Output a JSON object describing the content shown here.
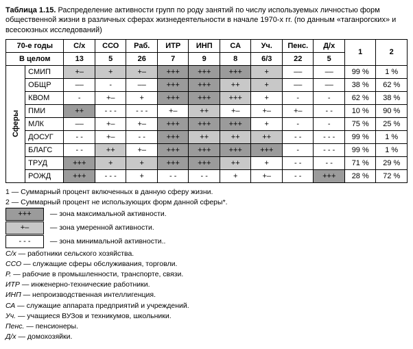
{
  "colors": {
    "bg": "#ffffff",
    "text": "#000000",
    "max": "#9b9b9b",
    "mid": "#c8c8c8",
    "min": "#ffffff"
  },
  "title_prefix": "Таблица 1.15.",
  "title": "Распределение активности групп по роду занятий по числу используемых личностью форм общественной жизни в различных сферах жизнедеятельности в начале 1970-х гг. (по данным «таганрогских» и всесоюзных исследований)",
  "header1": [
    "70-е годы",
    "С/х",
    "ССО",
    "Раб.",
    "ИТР",
    "ИНП",
    "СА",
    "Уч.",
    "Пенс.",
    "Д/х",
    "1",
    "2"
  ],
  "header2": [
    "В целом",
    "13",
    "5",
    "26",
    "7",
    "9",
    "8",
    "6/3",
    "22",
    "5"
  ],
  "vert_label": "Сферы",
  "rows": [
    {
      "name": "СМИП",
      "col1": "99 %",
      "col2": "1 %",
      "cells": [
        {
          "v": "+–",
          "s": "mid"
        },
        {
          "v": "+",
          "s": "mid"
        },
        {
          "v": "+–",
          "s": "mid"
        },
        {
          "v": "+++",
          "s": "max"
        },
        {
          "v": "+++",
          "s": "max"
        },
        {
          "v": "+++",
          "s": "max"
        },
        {
          "v": "+",
          "s": "mid"
        },
        {
          "v": "––",
          "s": "min"
        },
        {
          "v": "––",
          "s": "min"
        }
      ]
    },
    {
      "name": "ОБЩР",
      "col1": "38 %",
      "col2": "62 %",
      "cells": [
        {
          "v": "––",
          "s": "min"
        },
        {
          "v": "-",
          "s": "min"
        },
        {
          "v": "––",
          "s": "min"
        },
        {
          "v": "+++",
          "s": "max"
        },
        {
          "v": "+++",
          "s": "max"
        },
        {
          "v": "++",
          "s": "mid"
        },
        {
          "v": "+",
          "s": "mid"
        },
        {
          "v": "––",
          "s": "min"
        },
        {
          "v": "––",
          "s": "min"
        }
      ]
    },
    {
      "name": "КВОМ",
      "col1": "62 %",
      "col2": "38 %",
      "cells": [
        {
          "v": "-",
          "s": "min"
        },
        {
          "v": "+–",
          "s": "min"
        },
        {
          "v": "+",
          "s": "min"
        },
        {
          "v": "+++",
          "s": "max"
        },
        {
          "v": "+++",
          "s": "max"
        },
        {
          "v": "+++",
          "s": "mid"
        },
        {
          "v": "+",
          "s": "min"
        },
        {
          "v": "-",
          "s": "min"
        },
        {
          "v": "-",
          "s": "min"
        }
      ]
    },
    {
      "name": "ПМИ",
      "col1": "10 %",
      "col2": "90 %",
      "cells": [
        {
          "v": "++",
          "s": "max"
        },
        {
          "v": "- - -",
          "s": "min"
        },
        {
          "v": "- - -",
          "s": "min"
        },
        {
          "v": "+–",
          "s": "min"
        },
        {
          "v": "++",
          "s": "mid"
        },
        {
          "v": "+–",
          "s": "min"
        },
        {
          "v": "+–",
          "s": "min"
        },
        {
          "v": "+–",
          "s": "min"
        },
        {
          "v": "- -",
          "s": "min"
        }
      ]
    },
    {
      "name": "МЛК",
      "col1": "75 %",
      "col2": "25 %",
      "cells": [
        {
          "v": "––",
          "s": "min"
        },
        {
          "v": "+–",
          "s": "min"
        },
        {
          "v": "+–",
          "s": "min"
        },
        {
          "v": "+++",
          "s": "max"
        },
        {
          "v": "+++",
          "s": "max"
        },
        {
          "v": "+++",
          "s": "max"
        },
        {
          "v": "+",
          "s": "min"
        },
        {
          "v": "-",
          "s": "min"
        },
        {
          "v": "-",
          "s": "min"
        }
      ]
    },
    {
      "name": "ДОСУГ",
      "col1": "99 %",
      "col2": "1 %",
      "cells": [
        {
          "v": "- -",
          "s": "min"
        },
        {
          "v": "+–",
          "s": "min"
        },
        {
          "v": "- -",
          "s": "min"
        },
        {
          "v": "+++",
          "s": "max"
        },
        {
          "v": "++",
          "s": "mid"
        },
        {
          "v": "++",
          "s": "mid"
        },
        {
          "v": "++",
          "s": "mid"
        },
        {
          "v": "- -",
          "s": "min"
        },
        {
          "v": "- - -",
          "s": "min"
        }
      ]
    },
    {
      "name": "БЛАГС",
      "col1": "99 %",
      "col2": "1 %",
      "cells": [
        {
          "v": "- -",
          "s": "min"
        },
        {
          "v": "++",
          "s": "mid"
        },
        {
          "v": "+–",
          "s": "min"
        },
        {
          "v": "+++",
          "s": "max"
        },
        {
          "v": "+++",
          "s": "max"
        },
        {
          "v": "+++",
          "s": "max"
        },
        {
          "v": "+++",
          "s": "max"
        },
        {
          "v": "-",
          "s": "min"
        },
        {
          "v": "- - -",
          "s": "min"
        }
      ]
    },
    {
      "name": "ТРУД",
      "col1": "71 %",
      "col2": "29 %",
      "cells": [
        {
          "v": "+++",
          "s": "max"
        },
        {
          "v": "+",
          "s": "mid"
        },
        {
          "v": "+",
          "s": "mid"
        },
        {
          "v": "+++",
          "s": "max"
        },
        {
          "v": "+++",
          "s": "max"
        },
        {
          "v": "++",
          "s": "mid"
        },
        {
          "v": "+",
          "s": "min"
        },
        {
          "v": "- -",
          "s": "min"
        },
        {
          "v": "- -",
          "s": "min"
        }
      ]
    },
    {
      "name": "РОЖД",
      "col1": "28 %",
      "col2": "72 %",
      "cells": [
        {
          "v": "+++",
          "s": "max"
        },
        {
          "v": "- - -",
          "s": "min"
        },
        {
          "v": "+",
          "s": "min"
        },
        {
          "v": "- -",
          "s": "min"
        },
        {
          "v": "- -",
          "s": "min"
        },
        {
          "v": "+",
          "s": "min"
        },
        {
          "v": "+–",
          "s": "min"
        },
        {
          "v": "- -",
          "s": "min"
        },
        {
          "v": "+++",
          "s": "max"
        }
      ]
    }
  ],
  "foot1": "1 — Суммарный процент включенных в данную сферу жизни.",
  "foot2": "2 — Суммарный процент не использующих форм данной сферы*.",
  "legend": [
    {
      "v": "+++",
      "s": "max",
      "t": "— зона максимальной активности."
    },
    {
      "v": "+–",
      "s": "mid",
      "t": "— зона умеренной активности."
    },
    {
      "v": "- - -",
      "s": "min",
      "t": "— зона минимальной активности.."
    }
  ],
  "abbr": [
    "С/х — работники сельского хозяйства.",
    "ССО — служащие сферы обслуживания, торговли.",
    "Р. — рабочие в промышленности, транспорте, связи.",
    "ИТР — инженерно-технические работники.",
    "ИНП — непроизводственная интеллигенция.",
    "СА — служащие аппарата предприятий и учреждений.",
    "Уч. — учащиеся ВУЗов и техникумов, школьники.",
    "Пенс. — пенсионеры.",
    "Д/х — домохозяйки."
  ]
}
